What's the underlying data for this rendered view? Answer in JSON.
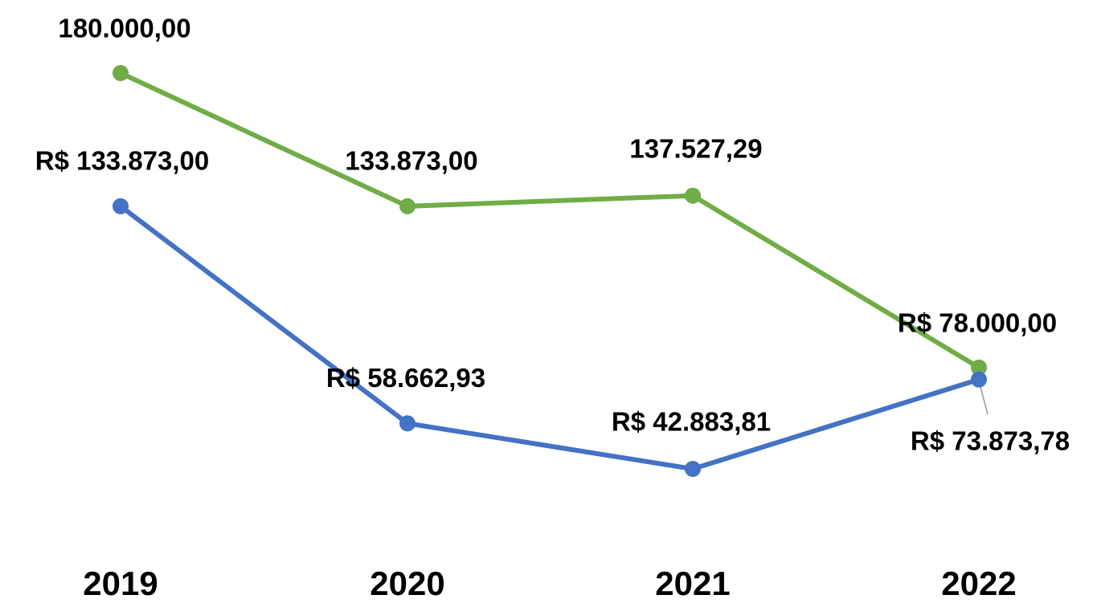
{
  "chart_data": {
    "type": "line",
    "categories": [
      "2019",
      "2020",
      "2021",
      "2022"
    ],
    "series": [
      {
        "color": "#70ad47",
        "values": [
          180000,
          133873,
          137527.29,
          78000
        ],
        "value_labels": [
          "180.000,00",
          "133.873,00",
          "137.527,29",
          "R$ 78.000,00"
        ]
      },
      {
        "color": "#4472c4",
        "values": [
          133873,
          58662.93,
          42883.81,
          73873.78
        ],
        "value_labels": [
          "R$ 133.873,00",
          "R$ 58.662,93",
          "R$ 42.883,81",
          "R$ 73.873,78"
        ]
      }
    ]
  }
}
